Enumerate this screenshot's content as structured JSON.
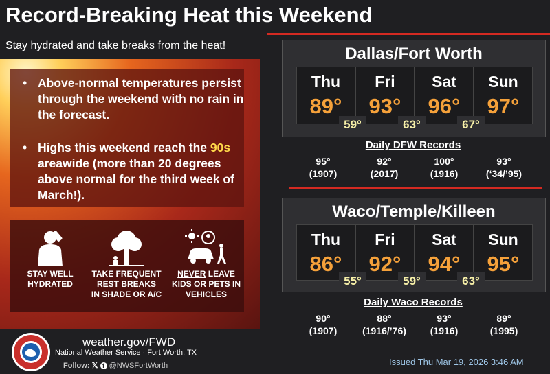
{
  "title": "Record-Breaking Heat this Weekend",
  "subtitle": "Stay hydrated and take breaks from the heat!",
  "bullets": {
    "b1": "Above-normal temperatures persist through the weekend with no rain in the forecast.",
    "b2_pre": "Highs this weekend reach the ",
    "b2_hl": "90s",
    "b2_post": " areawide (more than 20 degrees above normal for the third week of March!)."
  },
  "tips": [
    {
      "line1": "STAY WELL",
      "line2": "HYDRATED"
    },
    {
      "line1": "TAKE FREQUENT",
      "line2": "REST BREAKS",
      "line3": "IN SHADE OR A/C"
    },
    {
      "line1_u": "NEVER",
      "line1": " LEAVE",
      "line2": "KIDS OR PETS IN",
      "line3": "VEHICLES"
    }
  ],
  "dfw": {
    "title": "Dallas/Fort Worth",
    "days": [
      {
        "name": "Thu",
        "high": "89°"
      },
      {
        "name": "Fri",
        "high": "93°"
      },
      {
        "name": "Sat",
        "high": "96°"
      },
      {
        "name": "Sun",
        "high": "97°"
      }
    ],
    "lows": [
      "59°",
      "63°",
      "67°"
    ],
    "records_title": "Daily  DFW Records",
    "records": [
      {
        "temp": "95°",
        "year": "(1907)"
      },
      {
        "temp": "92°",
        "year": "(2017)"
      },
      {
        "temp": "100°",
        "year": "(1916)"
      },
      {
        "temp": "93°",
        "year": "(‘34/’95)"
      }
    ]
  },
  "waco": {
    "title": "Waco/Temple/Killeen",
    "days": [
      {
        "name": "Thu",
        "high": "86°"
      },
      {
        "name": "Fri",
        "high": "92°"
      },
      {
        "name": "Sat",
        "high": "94°"
      },
      {
        "name": "Sun",
        "high": "95°"
      }
    ],
    "lows": [
      "55°",
      "59°",
      "63°"
    ],
    "records_title": "Daily Waco Records",
    "records": [
      {
        "temp": "90°",
        "year": "(1907)"
      },
      {
        "temp": "88°",
        "year": "(1916/’76)"
      },
      {
        "temp": "93°",
        "year": "(1916)"
      },
      {
        "temp": "89°",
        "year": "(1995)"
      }
    ]
  },
  "footer": {
    "url": "weather.gov/FWD",
    "org": "National Weather Service · Fort Worth, TX",
    "follow_label": "Follow:",
    "handle": "@NWSFortWorth",
    "issued": "Issued Thu Mar 19, 2026 3:46 AM"
  },
  "colors": {
    "accent_red": "#d42a22",
    "high_orange": "#f5a13a",
    "low_yellow": "#f7f0a8",
    "highlight": "#ffd84a"
  },
  "icons": [
    "drinking-person-icon",
    "tree-shade-icon",
    "car-kid-pet-icon",
    "sun-icon",
    "x-logo-icon",
    "facebook-icon",
    "nws-logo-icon"
  ]
}
